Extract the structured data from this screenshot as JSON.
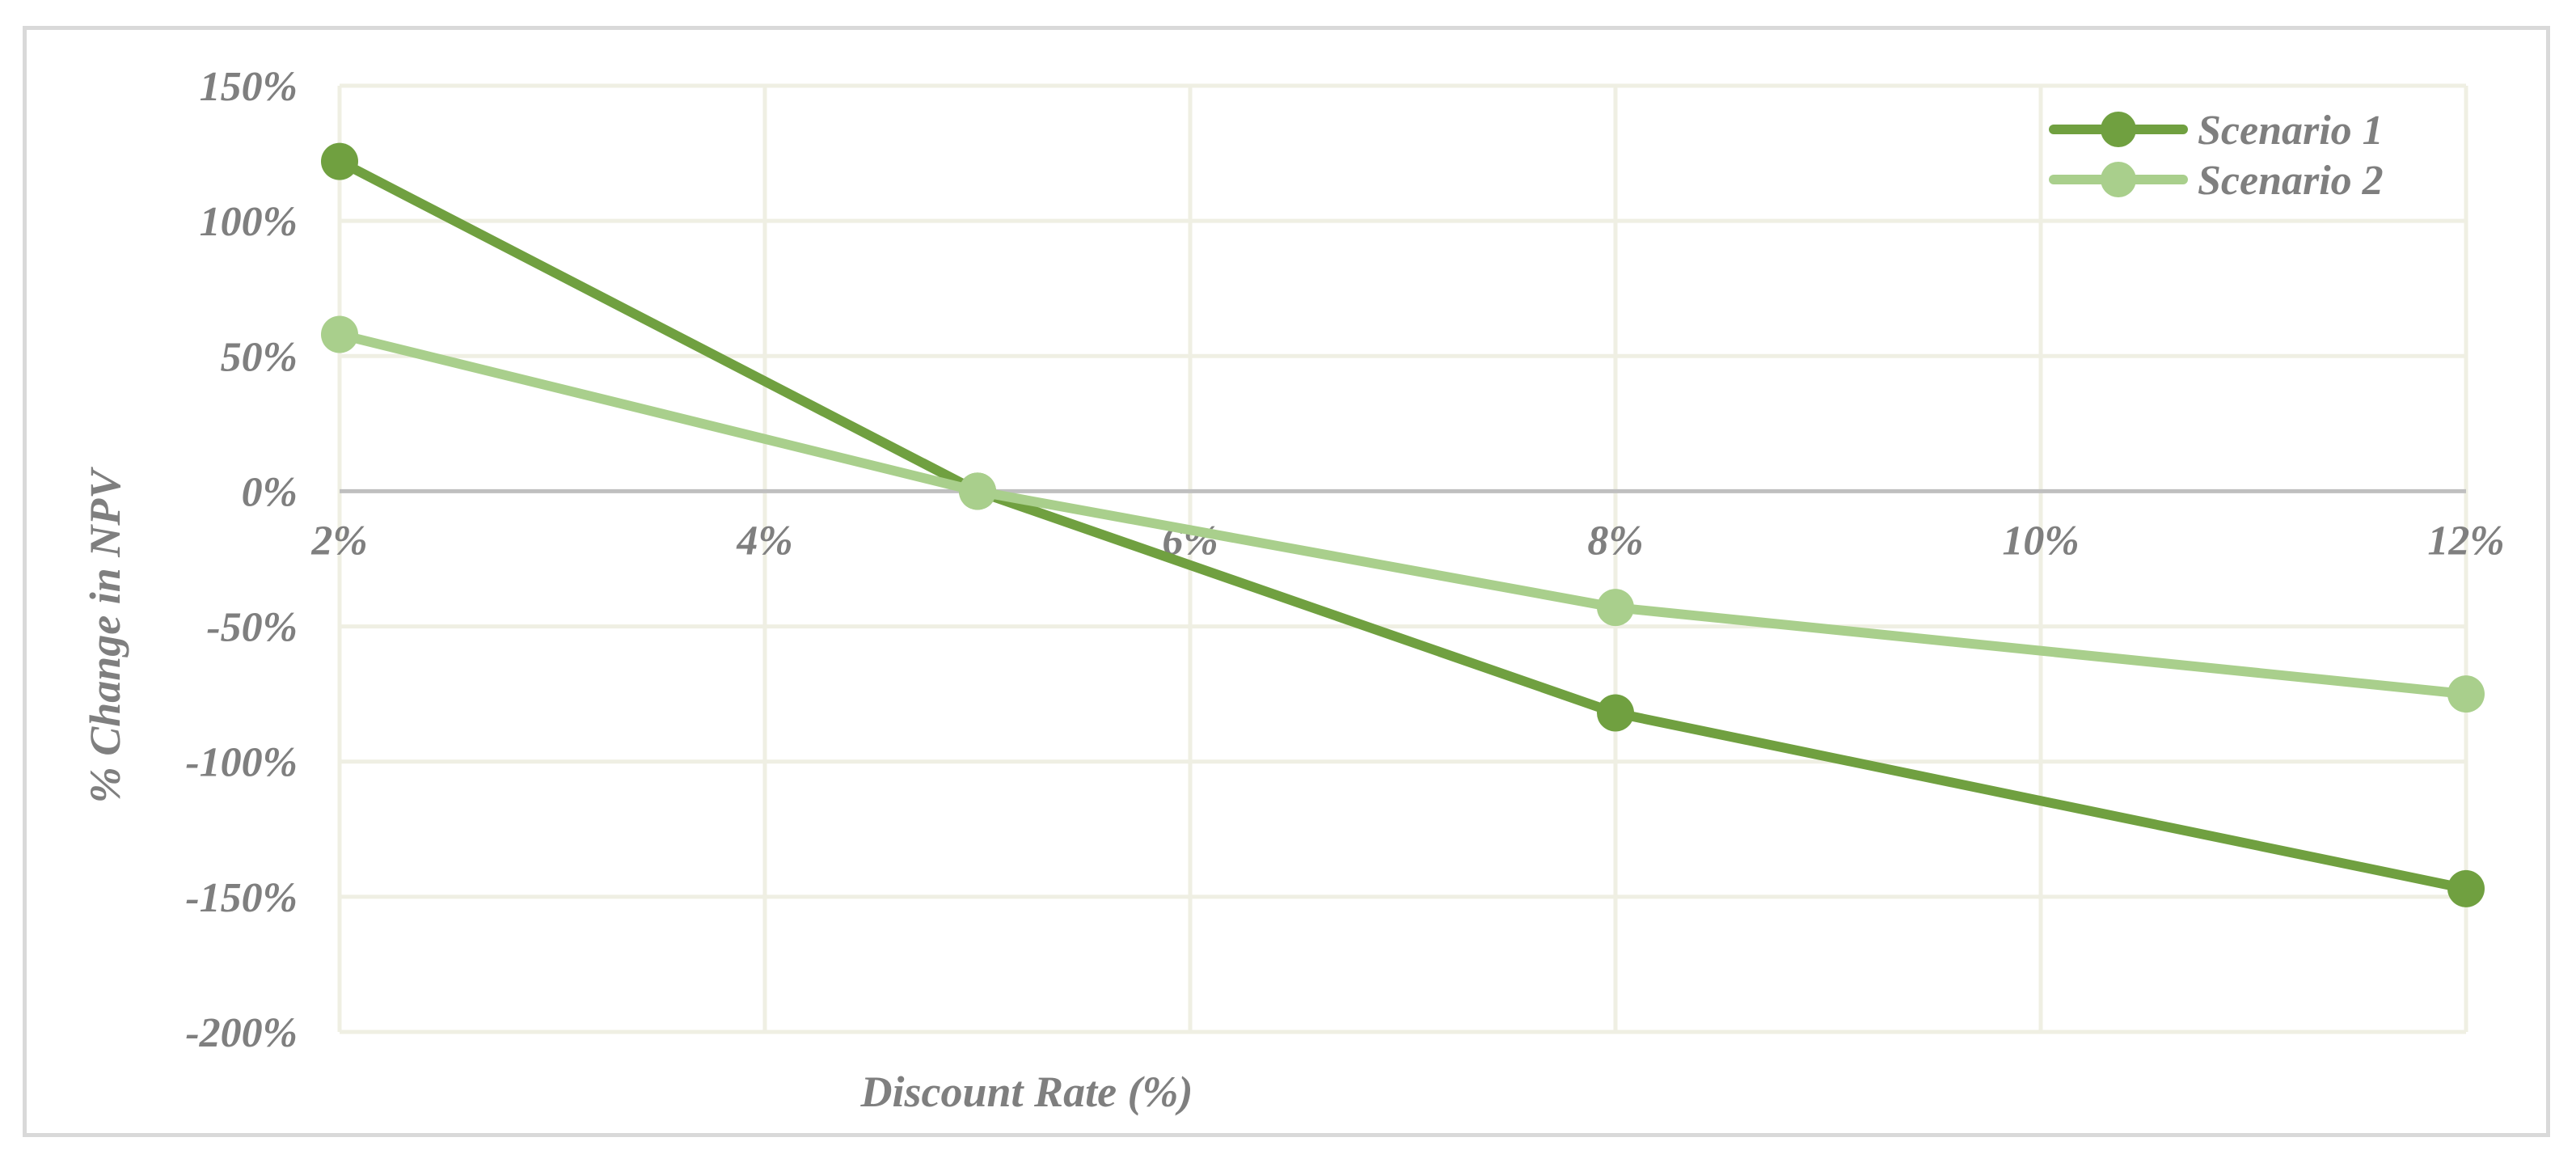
{
  "chart_data": {
    "type": "line",
    "title": "",
    "xlabel": "Discount Rate (%)",
    "ylabel": "% Change in NPV",
    "x_scale": "linear",
    "xlim": [
      2,
      12
    ],
    "ylim": [
      -200,
      150
    ],
    "x_ticks": [
      2,
      4,
      6,
      8,
      10,
      12
    ],
    "x_tick_labels": [
      "2%",
      "4%",
      "6%",
      "8%",
      "10%",
      "12%"
    ],
    "y_ticks": [
      150,
      100,
      50,
      0,
      -50,
      -100,
      -150,
      -200
    ],
    "y_tick_labels": [
      "150%",
      "100%",
      "50%",
      "0%",
      "-50%",
      "-100%",
      "-150%",
      "-200%"
    ],
    "grid": true,
    "legend_position": "top-right",
    "series": [
      {
        "name": "Scenario 1",
        "color": "#70a040",
        "x": [
          2,
          5,
          8,
          12
        ],
        "y": [
          122,
          0,
          -82,
          -147
        ]
      },
      {
        "name": "Scenario 2",
        "color": "#a9cf8c",
        "x": [
          2,
          5,
          8,
          12
        ],
        "y": [
          58,
          0,
          -43,
          -75
        ]
      }
    ]
  },
  "colors": {
    "grid": "#efefe3",
    "zero_axis": "#bfbfbf",
    "text": "#7f7f7f",
    "frame": "#d9d9d9"
  }
}
